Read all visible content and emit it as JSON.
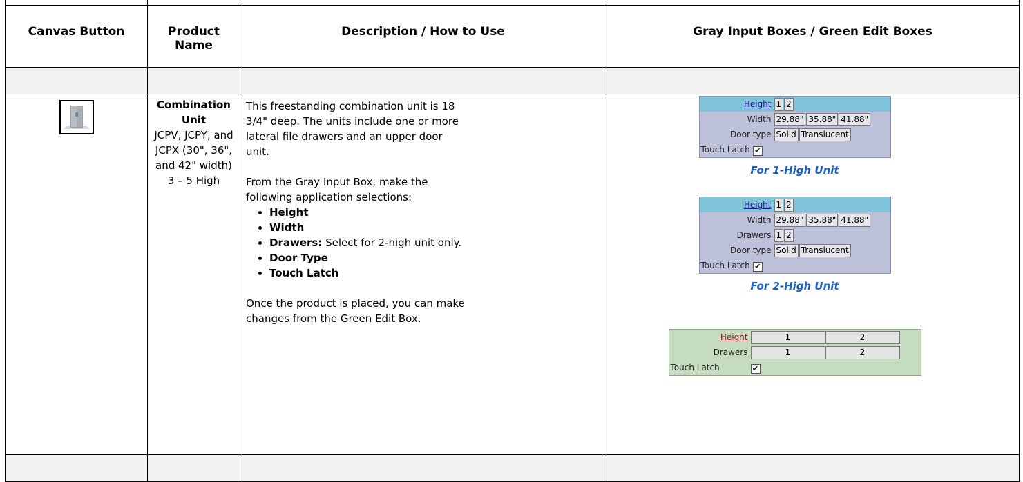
{
  "table": {
    "headers": [
      "Canvas Button",
      "Product Name",
      "Description / How to Use",
      "Gray Input Boxes / Green Edit Boxes"
    ],
    "row": {
      "product": {
        "name": "Combination Unit",
        "models": "JCPV, JCPY, and JCPX",
        "widths": "(30\", 36\", and 42\" width)",
        "height": "3 – 5 High"
      },
      "description": {
        "intro": "This freestanding combination unit is 18 3/4\" deep. The units include one or more lateral file drawers and an upper door unit.",
        "instruction": "From the Gray Input Box, make the following application selections:",
        "bullets": [
          {
            "label": "Height"
          },
          {
            "label": "Width"
          },
          {
            "label": "Drawers:",
            "text": "Select for 2-high unit only."
          },
          {
            "label": "Door Type"
          },
          {
            "label": "Touch Latch"
          }
        ],
        "closing": "Once the product is placed, you can make changes from the Green Edit Box."
      },
      "panels": [
        {
          "style": "gray",
          "caption": "For 1-High Unit",
          "rows": [
            {
              "label": "Height",
              "options": [
                "1",
                "2"
              ]
            },
            {
              "label": "Width",
              "options": [
                "29.88\"",
                "35.88\"",
                "41.88\""
              ]
            },
            {
              "label": "Door type",
              "options": [
                "Solid",
                "Translucent"
              ]
            },
            {
              "label": "Touch Latch",
              "checked": true
            }
          ]
        },
        {
          "style": "gray",
          "caption": "For 2-High Unit",
          "rows": [
            {
              "label": "Height",
              "options": [
                "1",
                "2"
              ]
            },
            {
              "label": "Width",
              "options": [
                "29.88\"",
                "35.88\"",
                "41.88\""
              ]
            },
            {
              "label": "Drawers",
              "options": [
                "1",
                "2"
              ]
            },
            {
              "label": "Door type",
              "options": [
                "Solid",
                "Translucent"
              ]
            },
            {
              "label": "Touch Latch",
              "checked": true
            }
          ]
        },
        {
          "style": "green",
          "rows": [
            {
              "label": "Height",
              "options": [
                "1",
                "2"
              ]
            },
            {
              "label": "Drawers",
              "options": [
                "1",
                "2"
              ]
            },
            {
              "label": "Touch Latch",
              "checked": true
            }
          ]
        }
      ]
    }
  }
}
